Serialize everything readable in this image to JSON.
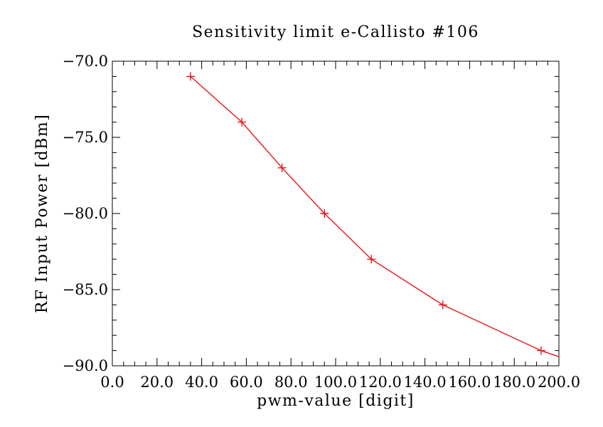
{
  "chart_data": {
    "type": "line",
    "title": "Sensitivity limit e-Callisto #106",
    "xlabel": "pwm-value [digit]",
    "ylabel": "RF Input Power [dBm]",
    "xlim": [
      0,
      200
    ],
    "ylim": [
      -90,
      -70
    ],
    "grid": false,
    "x_ticks": [
      0,
      20,
      40,
      60,
      80,
      100,
      120,
      140,
      160,
      180,
      200
    ],
    "x_tick_labels": [
      "0.0",
      "20.0",
      "40.0",
      "60.0",
      "80.0",
      "100.0",
      "120.0",
      "140.0",
      "160.0",
      "180.0",
      "200.0"
    ],
    "y_ticks": [
      -70,
      -75,
      -80,
      -85,
      -90
    ],
    "y_tick_labels": [
      "−70.0",
      "−75.0",
      "−80.0",
      "−85.0",
      "−90.0"
    ],
    "series": [
      {
        "color": "#e8141a",
        "marker": "plus",
        "x": [
          35,
          58,
          76,
          95,
          116,
          148,
          192
        ],
        "y": [
          -71,
          -74,
          -77,
          -80,
          -83,
          -86,
          -89
        ]
      }
    ],
    "line_extension": {
      "x": 200,
      "y": -89.4
    }
  }
}
